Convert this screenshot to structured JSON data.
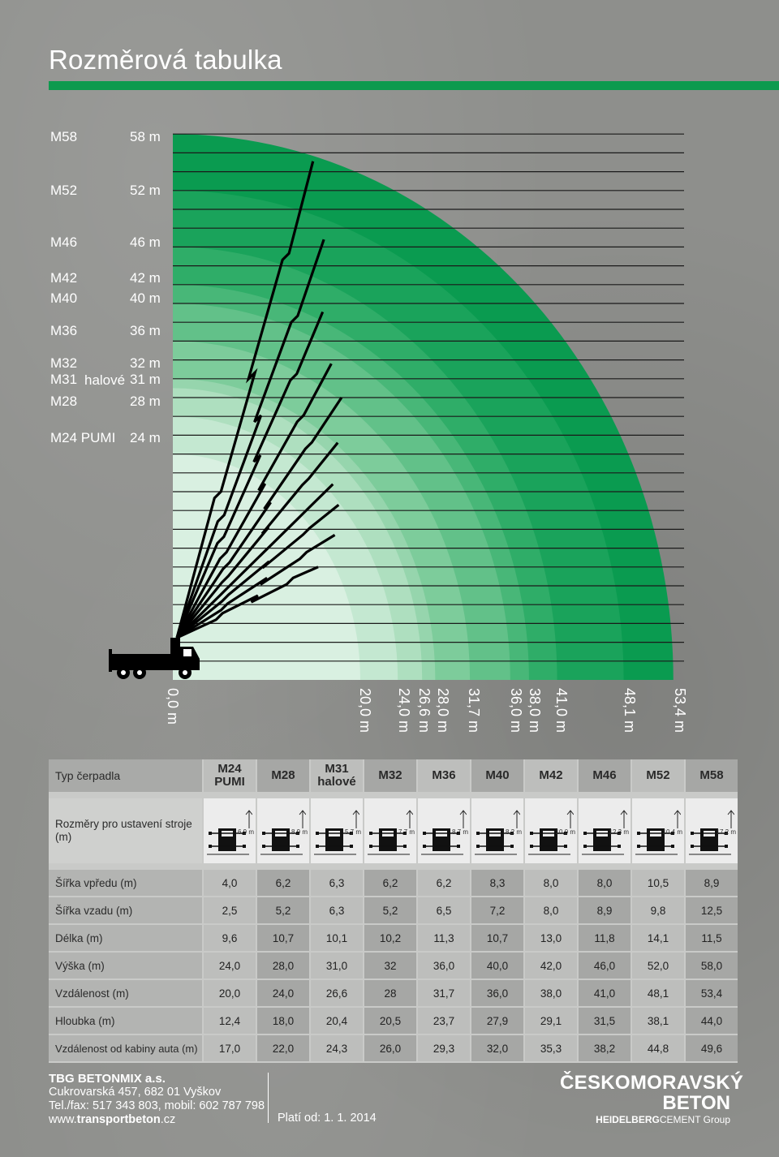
{
  "page": {
    "title": "Rozměrová tabulka",
    "accent": "#0d9a4e"
  },
  "heights": [
    {
      "model": "M58",
      "sub": "",
      "height": "58 m",
      "value": 58
    },
    {
      "model": "M52",
      "sub": "",
      "height": "52 m",
      "value": 52
    },
    {
      "model": "M46",
      "sub": "",
      "height": "46 m",
      "value": 46
    },
    {
      "model": "M42",
      "sub": "",
      "height": "42 m",
      "value": 42
    },
    {
      "model": "M40",
      "sub": "",
      "height": "40 m",
      "value": 40
    },
    {
      "model": "M36",
      "sub": "",
      "height": "36 m",
      "value": 36
    },
    {
      "model": "M32",
      "sub": "",
      "height": "32 m",
      "value": 32
    },
    {
      "model": "M31",
      "sub": "halové",
      "height": "31 m",
      "value": 31
    },
    {
      "model": "M28",
      "sub": "",
      "height": "28 m",
      "value": 28
    },
    {
      "model": "M24 PUMI",
      "sub": "",
      "height": "24 m",
      "value": 24
    }
  ],
  "distances": [
    {
      "label": "0,0 m",
      "value": 0
    },
    {
      "label": "20,0 m",
      "value": 20.0
    },
    {
      "label": "24,0 m",
      "value": 24.0
    },
    {
      "label": "26,6 m",
      "value": 26.6
    },
    {
      "label": "28,0 m",
      "value": 28.0
    },
    {
      "label": "31,7 m",
      "value": 31.7
    },
    {
      "label": "36,0 m",
      "value": 36.0
    },
    {
      "label": "38,0 m",
      "value": 38.0
    },
    {
      "label": "41,0 m",
      "value": 41.0
    },
    {
      "label": "48,1 m",
      "value": 48.1
    },
    {
      "label": "53,4 m",
      "value": 53.4
    }
  ],
  "table": {
    "pump_type_label": "Typ čerpadla",
    "setup_label": "Rozměry pro ustavení stroje (m)",
    "models": [
      {
        "line1": "M24",
        "line2": "PUMI"
      },
      {
        "line1": "M28",
        "line2": ""
      },
      {
        "line1": "M31",
        "line2": "halové"
      },
      {
        "line1": "M32",
        "line2": ""
      },
      {
        "line1": "M36",
        "line2": ""
      },
      {
        "line1": "M40",
        "line2": ""
      },
      {
        "line1": "M42",
        "line2": ""
      },
      {
        "line1": "M46",
        "line2": ""
      },
      {
        "line1": "M52",
        "line2": ""
      },
      {
        "line1": "M58",
        "line2": ""
      }
    ],
    "outriggers": [
      "6,9 m",
      "8,9 m",
      "5,7 m",
      "7,7 m",
      "8,7 m",
      "8,2 m",
      "10,0 m",
      "12,3 m",
      "10,4 m",
      "17,2 m"
    ],
    "rows": [
      {
        "label": "Šířka vpředu (m)",
        "values": [
          "4,0",
          "6,2",
          "6,3",
          "6,2",
          "6,2",
          "8,3",
          "8,0",
          "8,0",
          "10,5",
          "8,9"
        ]
      },
      {
        "label": "Šířka vzadu (m)",
        "values": [
          "2,5",
          "5,2",
          "6,3",
          "5,2",
          "6,5",
          "7,2",
          "8,0",
          "8,9",
          "9,8",
          "12,5"
        ]
      },
      {
        "label": "Délka (m)",
        "values": [
          "9,6",
          "10,7",
          "10,1",
          "10,2",
          "11,3",
          "10,7",
          "13,0",
          "11,8",
          "14,1",
          "11,5"
        ]
      },
      {
        "label": "Výška (m)",
        "values": [
          "24,0",
          "28,0",
          "31,0",
          "32",
          "36,0",
          "40,0",
          "42,0",
          "46,0",
          "52,0",
          "58,0"
        ]
      },
      {
        "label": "Vzdálenost (m)",
        "values": [
          "20,0",
          "24,0",
          "26,6",
          "28",
          "31,7",
          "36,0",
          "38,0",
          "41,0",
          "48,1",
          "53,4"
        ]
      },
      {
        "label": "Hloubka (m)",
        "values": [
          "12,4",
          "18,0",
          "20,4",
          "20,5",
          "23,7",
          "27,9",
          "29,1",
          "31,5",
          "38,1",
          "44,0"
        ]
      },
      {
        "label": "Vzdálenost od kabiny auta (m)",
        "values": [
          "17,0",
          "22,0",
          "24,3",
          "26,0",
          "29,3",
          "32,0",
          "35,3",
          "38,2",
          "44,8",
          "49,6"
        ]
      }
    ]
  },
  "footer": {
    "company": "TBG BETONMIX a.s.",
    "address": "Cukrovarská 457, 682 01 Vyškov",
    "phone": "Tel./fax: 517 343 803, mobil: 602 787 798",
    "web_prefix": "www.",
    "web_bold": "transportbeton",
    "web_suffix": ".cz",
    "valid": "Platí od: 1. 1. 2014",
    "logo_line1": "ČESKOMORAVSKÝ",
    "logo_line2": "BETON",
    "logo_group_bold": "HEIDELBERG",
    "logo_group_rest": "CEMENT Group"
  }
}
